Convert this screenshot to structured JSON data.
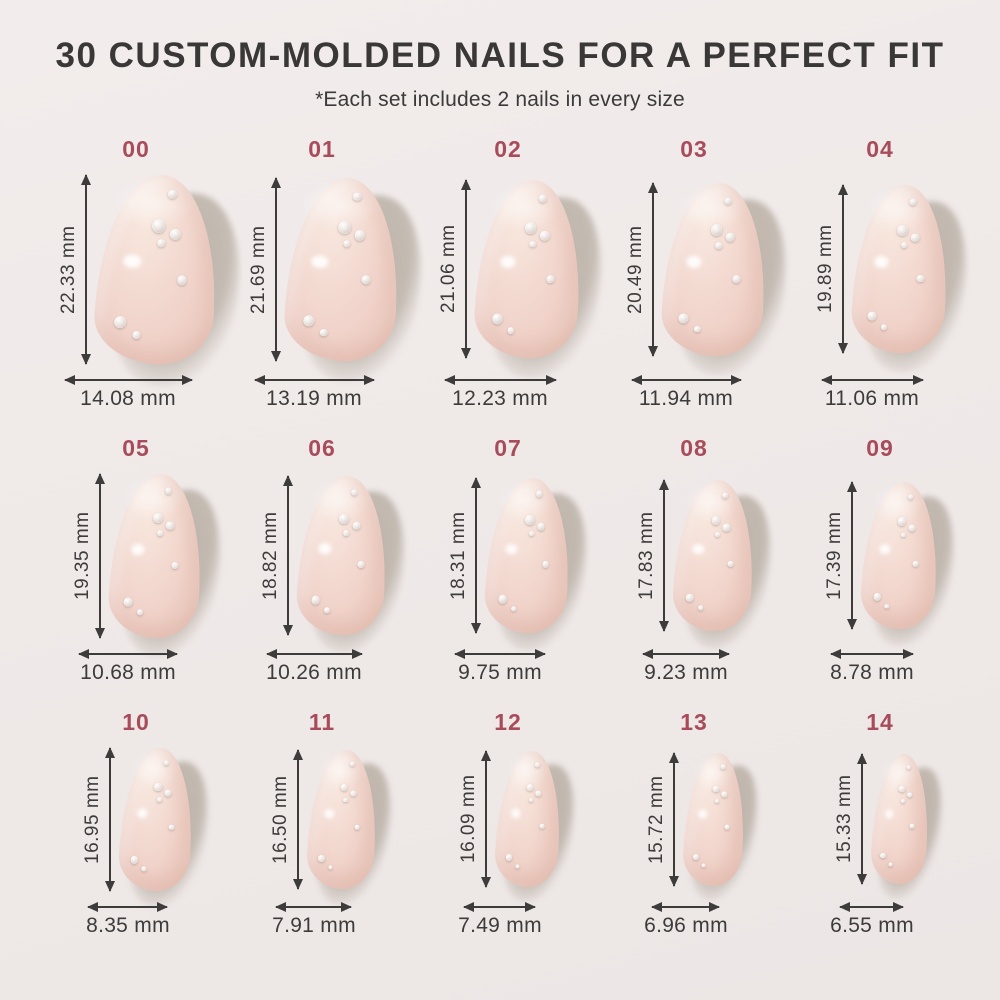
{
  "header": {
    "title": "30 CUSTOM-MOLDED NAILS FOR A PERFECT FIT",
    "subtitle": "*Each set includes 2 nails in every size"
  },
  "unit": "mm",
  "colors": {
    "accent": "#a84b5a",
    "text": "#3a3737",
    "background": "#efe9e8",
    "nail": "#f3dad1",
    "shadow": "#948777"
  },
  "sizes": [
    {
      "id": "00",
      "height_mm": 22.33,
      "width_mm": 14.08,
      "height_label": "22.33 mm",
      "width_label": "14.08 mm"
    },
    {
      "id": "01",
      "height_mm": 21.69,
      "width_mm": 13.19,
      "height_label": "21.69 mm",
      "width_label": "13.19 mm"
    },
    {
      "id": "02",
      "height_mm": 21.06,
      "width_mm": 12.23,
      "height_label": "21.06 mm",
      "width_label": "12.23 mm"
    },
    {
      "id": "03",
      "height_mm": 20.49,
      "width_mm": 11.94,
      "height_label": "20.49 mm",
      "width_label": "11.94 mm"
    },
    {
      "id": "04",
      "height_mm": 19.89,
      "width_mm": 11.06,
      "height_label": "19.89 mm",
      "width_label": "11.06 mm"
    },
    {
      "id": "05",
      "height_mm": 19.35,
      "width_mm": 10.68,
      "height_label": "19.35 mm",
      "width_label": "10.68 mm"
    },
    {
      "id": "06",
      "height_mm": 18.82,
      "width_mm": 10.26,
      "height_label": "18.82 mm",
      "width_label": "10.26 mm"
    },
    {
      "id": "07",
      "height_mm": 18.31,
      "width_mm": 9.75,
      "height_label": "18.31 mm",
      "width_label": "9.75 mm"
    },
    {
      "id": "08",
      "height_mm": 17.83,
      "width_mm": 9.23,
      "height_label": "17.83 mm",
      "width_label": "9.23 mm"
    },
    {
      "id": "09",
      "height_mm": 17.39,
      "width_mm": 8.78,
      "height_label": "17.39 mm",
      "width_label": "8.78 mm"
    },
    {
      "id": "10",
      "height_mm": 16.95,
      "width_mm": 8.35,
      "height_label": "16.95 mm",
      "width_label": "8.35 mm"
    },
    {
      "id": "11",
      "height_mm": 16.5,
      "width_mm": 7.91,
      "height_label": "16.50 mm",
      "width_label": "7.91 mm"
    },
    {
      "id": "12",
      "height_mm": 16.09,
      "width_mm": 7.49,
      "height_label": "16.09 mm",
      "width_label": "7.49 mm"
    },
    {
      "id": "13",
      "height_mm": 15.72,
      "width_mm": 6.96,
      "height_label": "15.72 mm",
      "width_label": "6.96 mm"
    },
    {
      "id": "14",
      "height_mm": 15.33,
      "width_mm": 6.55,
      "height_label": "15.33 mm",
      "width_label": "6.55 mm"
    }
  ]
}
